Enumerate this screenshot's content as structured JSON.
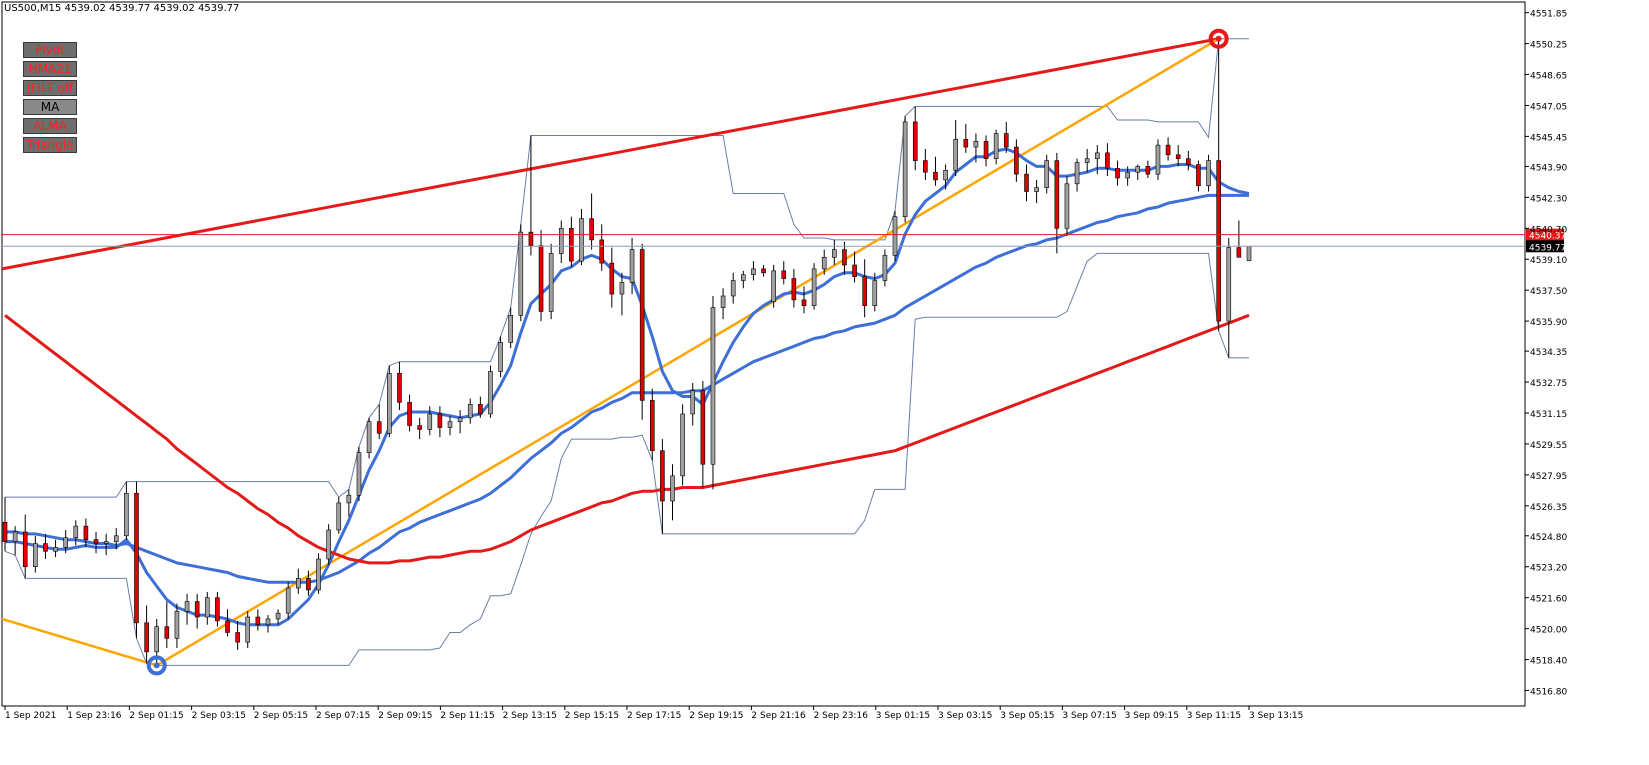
{
  "header": {
    "symbol_line": "US500,M15  4539.02 4539.77 4539.02 4539.77"
  },
  "buttons": [
    {
      "label": "Pivot",
      "active": false
    },
    {
      "label": "HMA21",
      "active": false
    },
    {
      "label": "JFILT off",
      "active": false
    },
    {
      "label": "MA",
      "active": true
    },
    {
      "label": "ALMA",
      "active": false
    },
    {
      "label": "Triangle",
      "active": false
    }
  ],
  "colors": {
    "bull_candle": "#a0a0a0",
    "bear_candle": "#e00000",
    "ma_red": "#e41a1a",
    "ma_blue": "#3d6fd6",
    "triangle_line": "#ffa500",
    "trend_line": "#e41a1a",
    "channel_line": "#6a7fa8",
    "ask_line": "#e41a1a",
    "bid_line": "#8f9cb0"
  },
  "price_labels": {
    "ask": "4540.37",
    "bid": "4539.77"
  },
  "chart_data": {
    "type": "candlestick",
    "title": "US500,M15",
    "ylim": [
      4516.0,
      4552.4
    ],
    "y_ticks": [
      "4551.85",
      "4550.25",
      "4548.65",
      "4547.05",
      "4545.45",
      "4543.90",
      "4542.30",
      "4540.70",
      "4539.10",
      "4537.50",
      "4535.90",
      "4534.35",
      "4532.75",
      "4531.15",
      "4529.55",
      "4527.95",
      "4526.35",
      "4524.80",
      "4523.20",
      "4521.60",
      "4520.00",
      "4518.40",
      "4516.80"
    ],
    "x_ticks": [
      "1 Sep 2021",
      "1 Sep 23:16",
      "2 Sep 01:15",
      "2 Sep 03:15",
      "2 Sep 05:15",
      "2 Sep 07:15",
      "2 Sep 09:15",
      "2 Sep 11:15",
      "2 Sep 13:15",
      "2 Sep 15:15",
      "2 Sep 17:15",
      "2 Sep 19:15",
      "2 Sep 21:16",
      "2 Sep 23:16",
      "3 Sep 01:15",
      "3 Sep 03:15",
      "3 Sep 05:15",
      "3 Sep 07:15",
      "3 Sep 09:15",
      "3 Sep 11:15",
      "3 Sep 13:15"
    ],
    "ask": 4540.37,
    "bid": 4539.77,
    "candles": [
      [
        4525.5,
        4526.8,
        4524.0,
        4524.5
      ],
      [
        4524.5,
        4525.3,
        4523.8,
        4525.0
      ],
      [
        4525.0,
        4525.9,
        4522.6,
        4523.2
      ],
      [
        4523.2,
        4524.8,
        4522.9,
        4524.4
      ],
      [
        4524.4,
        4524.9,
        4523.6,
        4524.0
      ],
      [
        4524.0,
        4524.6,
        4523.7,
        4524.2
      ],
      [
        4524.2,
        4525.1,
        4523.9,
        4524.7
      ],
      [
        4524.7,
        4525.6,
        4524.3,
        4525.3
      ],
      [
        4525.3,
        4525.7,
        4524.2,
        4524.6
      ],
      [
        4524.6,
        4525.0,
        4523.9,
        4524.4
      ],
      [
        4524.4,
        4524.9,
        4523.8,
        4524.5
      ],
      [
        4524.5,
        4525.2,
        4524.1,
        4524.8
      ],
      [
        4524.8,
        4527.6,
        4524.6,
        4527.0
      ],
      [
        4527.0,
        4527.6,
        4519.5,
        4520.3
      ],
      [
        4520.3,
        4521.2,
        4518.2,
        4518.8
      ],
      [
        4518.8,
        4520.5,
        4518.1,
        4520.1
      ],
      [
        4520.1,
        4521.4,
        4519.0,
        4519.5
      ],
      [
        4519.5,
        4521.3,
        4519.0,
        4520.9
      ],
      [
        4520.9,
        4521.8,
        4520.2,
        4521.4
      ],
      [
        4521.4,
        4521.8,
        4520.0,
        4520.6
      ],
      [
        4520.6,
        4521.9,
        4520.2,
        4521.6
      ],
      [
        4521.6,
        4521.9,
        4520.1,
        4520.4
      ],
      [
        4520.4,
        4521.0,
        4519.6,
        4519.8
      ],
      [
        4519.8,
        4520.4,
        4518.9,
        4519.3
      ],
      [
        4519.3,
        4520.9,
        4519.0,
        4520.6
      ],
      [
        4520.6,
        4521.0,
        4519.9,
        4520.2
      ],
      [
        4520.2,
        4520.7,
        4519.8,
        4520.5
      ],
      [
        4520.5,
        4521.0,
        4520.2,
        4520.8
      ],
      [
        4520.8,
        4522.4,
        4520.5,
        4522.1
      ],
      [
        4522.1,
        4523.1,
        4521.8,
        4522.6
      ],
      [
        4522.6,
        4523.0,
        4521.7,
        4522.0
      ],
      [
        4522.0,
        4523.9,
        4521.8,
        4523.6
      ],
      [
        4523.6,
        4525.4,
        4523.3,
        4525.1
      ],
      [
        4525.1,
        4526.8,
        4524.9,
        4526.5
      ],
      [
        4526.5,
        4527.2,
        4525.8,
        4526.9
      ],
      [
        4526.9,
        4529.4,
        4526.6,
        4529.1
      ],
      [
        4529.1,
        4530.9,
        4528.8,
        4530.7
      ],
      [
        4530.7,
        4531.6,
        4529.8,
        4530.1
      ],
      [
        4530.1,
        4533.6,
        4529.9,
        4533.2
      ],
      [
        4533.2,
        4533.8,
        4531.3,
        4531.7
      ],
      [
        4531.7,
        4532.1,
        4530.2,
        4530.5
      ],
      [
        4530.5,
        4530.9,
        4529.8,
        4530.3
      ],
      [
        4530.3,
        4531.5,
        4530.0,
        4531.1
      ],
      [
        4531.1,
        4531.5,
        4529.9,
        4530.4
      ],
      [
        4530.4,
        4531.0,
        4530.0,
        4530.7
      ],
      [
        4530.7,
        4531.3,
        4530.1,
        4530.9
      ],
      [
        4530.9,
        4531.9,
        4530.6,
        4531.6
      ],
      [
        4531.6,
        4532.0,
        4530.9,
        4531.1
      ],
      [
        4531.1,
        4533.6,
        4530.9,
        4533.3
      ],
      [
        4533.3,
        4535.1,
        4533.0,
        4534.8
      ],
      [
        4534.8,
        4536.6,
        4534.5,
        4536.2
      ],
      [
        4536.2,
        4540.9,
        4535.9,
        4540.5
      ],
      [
        4540.5,
        4545.5,
        4539.3,
        4539.8
      ],
      [
        4539.8,
        4540.6,
        4535.9,
        4536.4
      ],
      [
        4536.4,
        4539.9,
        4536.0,
        4539.4
      ],
      [
        4539.4,
        4541.1,
        4538.9,
        4540.7
      ],
      [
        4540.7,
        4541.3,
        4538.7,
        4539.0
      ],
      [
        4539.0,
        4541.7,
        4538.8,
        4541.2
      ],
      [
        4541.2,
        4542.5,
        4539.6,
        4540.1
      ],
      [
        4540.1,
        4540.9,
        4538.5,
        4538.9
      ],
      [
        4538.9,
        4539.7,
        4536.6,
        4537.3
      ],
      [
        4537.3,
        4538.4,
        4536.2,
        4537.9
      ],
      [
        4537.9,
        4540.2,
        4537.3,
        4539.6
      ],
      [
        4539.6,
        4539.9,
        4530.8,
        4531.8
      ],
      [
        4531.8,
        4532.4,
        4528.7,
        4529.2
      ],
      [
        4529.2,
        4529.8,
        4524.9,
        4526.6
      ],
      [
        4526.6,
        4528.5,
        4525.6,
        4527.9
      ],
      [
        4527.9,
        4531.6,
        4527.4,
        4531.1
      ],
      [
        4531.1,
        4532.7,
        4530.5,
        4532.3
      ],
      [
        4532.3,
        4532.8,
        4527.3,
        4528.5
      ],
      [
        4528.5,
        4537.2,
        4527.2,
        4536.6
      ],
      [
        4536.6,
        4537.6,
        4536.0,
        4537.2
      ],
      [
        4537.2,
        4538.4,
        4536.8,
        4538.0
      ],
      [
        4538.0,
        4538.5,
        4537.6,
        4538.3
      ],
      [
        4538.3,
        4539.0,
        4538.0,
        4538.6
      ],
      [
        4538.6,
        4538.8,
        4538.2,
        4538.4
      ],
      [
        4536.9,
        4538.8,
        4536.6,
        4538.5
      ],
      [
        4538.5,
        4539.0,
        4537.8,
        4538.1
      ],
      [
        4538.1,
        4538.6,
        4536.6,
        4537.0
      ],
      [
        4537.0,
        4537.7,
        4536.3,
        4536.7
      ],
      [
        4536.7,
        4538.9,
        4536.5,
        4538.6
      ],
      [
        4538.6,
        4539.6,
        4538.3,
        4539.2
      ],
      [
        4539.2,
        4540.1,
        4538.8,
        4539.6
      ],
      [
        4539.6,
        4540.0,
        4538.3,
        4538.8
      ],
      [
        4538.8,
        4539.5,
        4537.9,
        4538.2
      ],
      [
        4538.2,
        4539.1,
        4536.1,
        4536.7
      ],
      [
        4536.7,
        4538.4,
        4536.4,
        4538.0
      ],
      [
        4538.0,
        4539.6,
        4537.7,
        4539.3
      ],
      [
        4539.3,
        4541.6,
        4539.0,
        4541.3
      ],
      [
        4541.3,
        4546.5,
        4541.0,
        4546.2
      ],
      [
        4546.2,
        4547.0,
        4543.7,
        4544.2
      ],
      [
        4544.2,
        4544.8,
        4543.2,
        4543.6
      ],
      [
        4543.6,
        4544.4,
        4542.9,
        4543.2
      ],
      [
        4543.2,
        4544.0,
        4542.7,
        4543.7
      ],
      [
        4543.7,
        4546.3,
        4543.4,
        4545.3
      ],
      [
        4545.3,
        4546.1,
        4544.6,
        4544.9
      ],
      [
        4544.9,
        4545.6,
        4544.1,
        4545.2
      ],
      [
        4545.2,
        4545.5,
        4543.9,
        4544.3
      ],
      [
        4544.3,
        4545.8,
        4544.0,
        4545.6
      ],
      [
        4545.6,
        4546.2,
        4544.6,
        4544.9
      ],
      [
        4544.9,
        4545.3,
        4543.1,
        4543.5
      ],
      [
        4543.5,
        4544.0,
        4542.1,
        4542.6
      ],
      [
        4542.6,
        4543.2,
        4542.0,
        4542.8
      ],
      [
        4542.8,
        4544.5,
        4542.5,
        4544.2
      ],
      [
        4544.2,
        4544.6,
        4539.4,
        4540.7
      ],
      [
        4540.7,
        4543.4,
        4540.3,
        4543.0
      ],
      [
        4543.0,
        4544.3,
        4542.6,
        4544.1
      ],
      [
        4544.1,
        4544.8,
        4543.6,
        4544.3
      ],
      [
        4544.3,
        4545.0,
        4543.5,
        4544.6
      ],
      [
        4544.6,
        4545.1,
        4543.4,
        4543.8
      ],
      [
        4543.8,
        4544.2,
        4542.9,
        4543.3
      ],
      [
        4543.3,
        4543.9,
        4542.9,
        4543.6
      ],
      [
        4543.6,
        4544.0,
        4543.2,
        4543.9
      ],
      [
        4543.9,
        4544.2,
        4543.3,
        4543.5
      ],
      [
        4543.5,
        4545.3,
        4543.2,
        4545.0
      ],
      [
        4545.0,
        4545.4,
        4544.2,
        4544.5
      ],
      [
        4544.5,
        4545.0,
        4543.9,
        4544.3
      ],
      [
        4544.3,
        4544.7,
        4543.7,
        4544.0
      ],
      [
        4544.0,
        4544.2,
        4542.6,
        4542.9
      ],
      [
        4542.9,
        4544.5,
        4542.6,
        4544.2
      ],
      [
        4544.2,
        4550.5,
        4535.4,
        4535.9
      ],
      [
        4535.9,
        4540.2,
        4534.0,
        4539.7
      ],
      [
        4539.7,
        4541.1,
        4539.2,
        4539.2
      ],
      [
        4539.02,
        4539.77,
        4539.02,
        4539.77
      ]
    ],
    "series": [
      {
        "name": "MA fast",
        "color": "#3d6fd6",
        "values": [
          4524.5,
          4524.5,
          4524.4,
          4524.3,
          4524.2,
          4524.1,
          4524.1,
          4524.2,
          4524.3,
          4524.2,
          4524.2,
          4524.2,
          4524.6,
          4523.9,
          4522.9,
          4522.2,
          4521.5,
          4521.1,
          4520.9,
          4520.7,
          4520.7,
          4520.6,
          4520.5,
          4520.3,
          4520.2,
          4520.2,
          4520.2,
          4520.2,
          4520.5,
          4521.0,
          4521.5,
          4522.3,
          4523.3,
          4524.5,
          4525.6,
          4526.9,
          4528.2,
          4529.2,
          4530.4,
          4531.0,
          4531.2,
          4531.2,
          4531.2,
          4531.1,
          4531.0,
          4530.9,
          4531.0,
          4531.1,
          4531.7,
          4532.6,
          4533.6,
          4535.3,
          4536.8,
          4537.3,
          4537.8,
          4538.5,
          4538.7,
          4539.1,
          4539.3,
          4539.1,
          4538.6,
          4538.2,
          4538.1,
          4536.7,
          4535.1,
          4533.3,
          4532.3,
          4532.0,
          4532.0,
          4531.6,
          4532.7,
          4533.8,
          4534.8,
          4535.6,
          4536.3,
          4536.7,
          4537.0,
          4537.3,
          4537.4,
          4537.3,
          4537.5,
          4537.8,
          4538.2,
          4538.4,
          4538.4,
          4538.2,
          4538.1,
          4538.3,
          4538.9,
          4540.4,
          4541.4,
          4542.1,
          4542.5,
          4542.9,
          4543.6,
          4544.0,
          4544.4,
          4544.4,
          4544.7,
          4544.8,
          4544.6,
          4544.2,
          4543.9,
          4543.9,
          4543.4,
          4543.4,
          4543.5,
          4543.6,
          4543.8,
          4543.8,
          4543.7,
          4543.7,
          4543.7,
          4543.7,
          4543.9,
          4543.9,
          4544.0,
          4544.0,
          4543.8,
          4543.8,
          4543.1,
          4542.8,
          4542.6,
          4542.5
        ]
      },
      {
        "name": "MA slow",
        "color": "#3d6fd6",
        "values": [
          4525.0,
          4525.0,
          4524.9,
          4524.9,
          4524.8,
          4524.7,
          4524.6,
          4524.6,
          4524.5,
          4524.4,
          4524.4,
          4524.3,
          4524.4,
          4524.2,
          4524.0,
          4523.8,
          4523.6,
          4523.4,
          4523.3,
          4523.2,
          4523.1,
          4523.0,
          4522.9,
          4522.7,
          4522.6,
          4522.5,
          4522.4,
          4522.4,
          4522.4,
          4522.4,
          4522.4,
          4522.5,
          4522.7,
          4522.9,
          4523.2,
          4523.5,
          4523.9,
          4524.2,
          4524.6,
          4525.0,
          4525.2,
          4525.5,
          4525.7,
          4525.9,
          4526.1,
          4526.3,
          4526.5,
          4526.7,
          4527.0,
          4527.4,
          4527.8,
          4528.3,
          4528.8,
          4529.2,
          4529.6,
          4530.1,
          4530.4,
          4530.8,
          4531.2,
          4531.4,
          4531.7,
          4531.9,
          4532.2,
          4532.2,
          4532.2,
          4532.2,
          4532.2,
          4532.2,
          4532.3,
          4532.3,
          4532.6,
          4532.9,
          4533.2,
          4533.5,
          4533.8,
          4534.0,
          4534.2,
          4534.4,
          4534.6,
          4534.8,
          4535.0,
          4535.1,
          4535.3,
          4535.4,
          4535.6,
          4535.7,
          4535.8,
          4536.0,
          4536.2,
          4536.6,
          4536.9,
          4537.2,
          4537.5,
          4537.8,
          4538.1,
          4538.4,
          4538.7,
          4538.9,
          4539.2,
          4539.4,
          4539.6,
          4539.8,
          4539.9,
          4540.1,
          4540.2,
          4540.4,
          4540.6,
          4540.8,
          4541.0,
          4541.1,
          4541.3,
          4541.4,
          4541.5,
          4541.7,
          4541.8,
          4542.0,
          4542.1,
          4542.2,
          4542.3,
          4542.4,
          4542.4,
          4542.4,
          4542.4,
          4542.4
        ]
      },
      {
        "name": "MA red",
        "color": "#e41a1a",
        "values": [
          4536.2,
          4535.8,
          4535.4,
          4535.0,
          4534.6,
          4534.2,
          4533.8,
          4533.4,
          4533.0,
          4532.6,
          4532.2,
          4531.8,
          4531.4,
          4531.0,
          4530.6,
          4530.2,
          4529.8,
          4529.3,
          4528.9,
          4528.5,
          4528.1,
          4527.7,
          4527.3,
          4527.0,
          4526.6,
          4526.2,
          4525.9,
          4525.5,
          4525.2,
          4524.8,
          4524.5,
          4524.2,
          4524.0,
          4523.8,
          4523.6,
          4523.5,
          4523.4,
          4523.4,
          4523.4,
          4523.5,
          4523.5,
          4523.6,
          4523.7,
          4523.7,
          4523.8,
          4523.9,
          4524.0,
          4524.0,
          4524.1,
          4524.3,
          4524.5,
          4524.8,
          4525.1,
          4525.3,
          4525.5,
          4525.7,
          4525.9,
          4526.1,
          4526.3,
          4526.5,
          4526.6,
          4526.8,
          4527.0,
          4527.1,
          4527.1,
          4527.2,
          4527.2,
          4527.3,
          4527.3,
          4527.3,
          4527.4,
          4527.5,
          4527.6,
          4527.7,
          4527.8,
          4527.9,
          4528.0,
          4528.1,
          4528.2,
          4528.3,
          4528.4,
          4528.5,
          4528.6,
          4528.7,
          4528.8,
          4528.9,
          4529.0,
          4529.1,
          4529.2,
          4529.4,
          4529.6,
          4529.8,
          4530.0,
          4530.2,
          4530.4,
          4530.6,
          4530.8,
          4531.0,
          4531.2,
          4531.4,
          4531.6,
          4531.8,
          4532.0,
          4532.2,
          4532.4,
          4532.6,
          4532.8,
          4533.0,
          4533.2,
          4533.4,
          4533.6,
          4533.8,
          4534.0,
          4534.2,
          4534.4,
          4534.6,
          4534.8,
          4535.0,
          4535.2,
          4535.4,
          4535.6,
          4535.8,
          4536.0,
          4536.2
        ]
      }
    ]
  }
}
